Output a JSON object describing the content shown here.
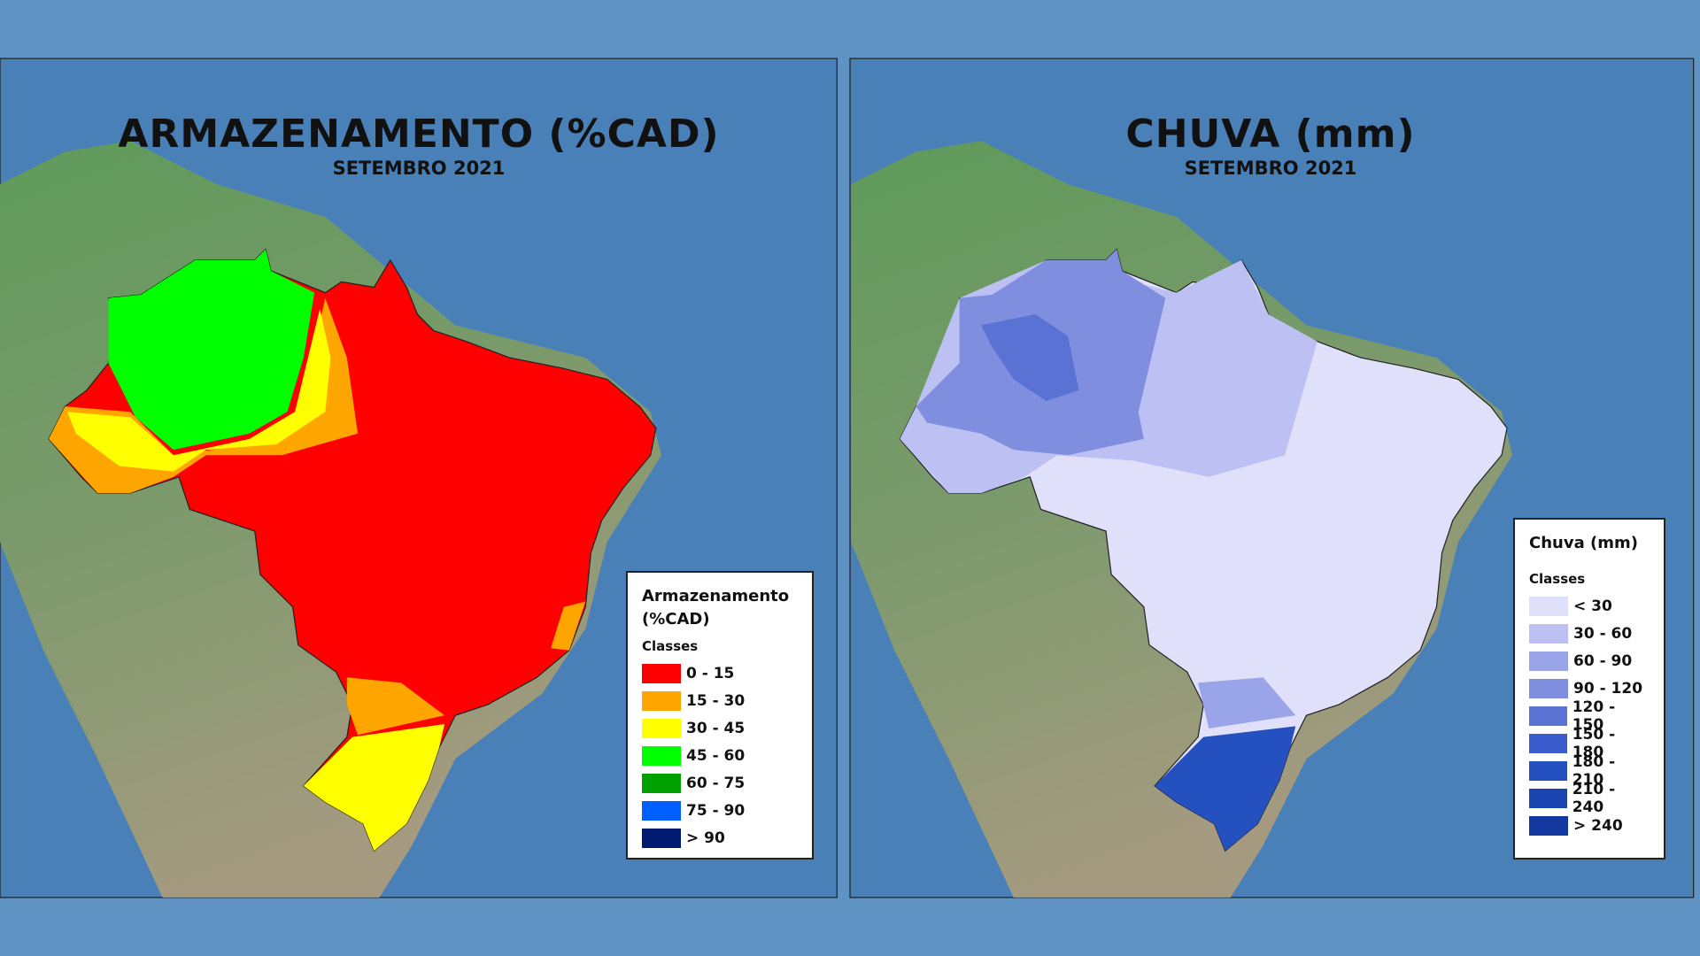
{
  "panels": [
    {
      "title": "ARMAZENAMENTO (%CAD)",
      "subtitle": "SETEMBRO 2021",
      "legend": {
        "title": "Armazenamento (%CAD)",
        "classes_label": "Classes",
        "items": [
          {
            "label": "0 - 15",
            "color": "#ff0000"
          },
          {
            "label": "15 - 30",
            "color": "#ffa500"
          },
          {
            "label": "30 - 45",
            "color": "#ffff00"
          },
          {
            "label": "45 - 60",
            "color": "#00ff00"
          },
          {
            "label": "60 - 75",
            "color": "#00a000"
          },
          {
            "label": "75 - 90",
            "color": "#0060ff"
          },
          {
            "label": "> 90",
            "color": "#001a70"
          }
        ]
      }
    },
    {
      "title": "CHUVA (mm)",
      "subtitle": "SETEMBRO 2021",
      "legend": {
        "title": "Chuva (mm)",
        "classes_label": "Classes",
        "items": [
          {
            "label": "< 30",
            "color": "#e0e0fa"
          },
          {
            "label": "30 - 60",
            "color": "#bcc0f2"
          },
          {
            "label": "60 - 90",
            "color": "#9aa4e8"
          },
          {
            "label": "90 - 120",
            "color": "#7f8ede"
          },
          {
            "label": "120 - 150",
            "color": "#5a72d4"
          },
          {
            "label": "150 - 180",
            "color": "#3a5ccc"
          },
          {
            "label": "180 - 210",
            "color": "#2450c0"
          },
          {
            "label": "210 - 240",
            "color": "#1a44b0"
          },
          {
            "label": "> 240",
            "color": "#1238a0"
          }
        ]
      }
    }
  ]
}
